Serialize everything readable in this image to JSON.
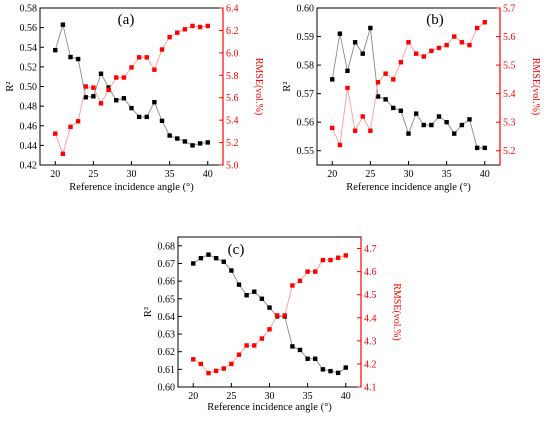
{
  "chart_data": [
    {
      "panel_label": "(a)",
      "type": "scatter",
      "xlabel": "Reference incidence angle (°)",
      "ylabel_left": "R²",
      "ylabel_right": "RMSE(vol.%)",
      "x": [
        20,
        21,
        22,
        23,
        24,
        25,
        26,
        27,
        28,
        29,
        30,
        31,
        32,
        33,
        34,
        35,
        36,
        37,
        38,
        39,
        40
      ],
      "xlim": [
        18,
        42
      ],
      "xticks": [
        "20",
        "25",
        "30",
        "35",
        "40"
      ],
      "ylim_left": [
        0.42,
        0.58
      ],
      "yticks_left": [
        "0.42",
        "0.44",
        "0.46",
        "0.48",
        "0.50",
        "0.52",
        "0.54",
        "0.56",
        "0.58"
      ],
      "ylim_right": [
        5.0,
        6.4
      ],
      "yticks_right": [
        "5.0",
        "5.2",
        "5.4",
        "5.6",
        "5.8",
        "6.0",
        "6.2",
        "6.4"
      ],
      "series": [
        {
          "axis": "left",
          "color": "#000000",
          "values": [
            0.537,
            0.563,
            0.53,
            0.528,
            0.489,
            0.49,
            0.513,
            0.499,
            0.486,
            0.488,
            0.478,
            0.469,
            0.469,
            0.484,
            0.465,
            0.45,
            0.447,
            0.444,
            0.44,
            0.442,
            0.443
          ]
        },
        {
          "axis": "right",
          "color": "#ff0000",
          "values": [
            5.28,
            5.1,
            5.34,
            5.39,
            5.7,
            5.69,
            5.55,
            5.67,
            5.78,
            5.78,
            5.87,
            5.96,
            5.96,
            5.85,
            6.03,
            6.14,
            6.18,
            6.21,
            6.24,
            6.23,
            6.24
          ]
        }
      ]
    },
    {
      "panel_label": "(b)",
      "type": "scatter",
      "xlabel": "Reference incidence angle (°)",
      "ylabel_left": "R²",
      "ylabel_right": "RMSE(vol.%)",
      "x": [
        20,
        21,
        22,
        23,
        24,
        25,
        26,
        27,
        28,
        29,
        30,
        31,
        32,
        33,
        34,
        35,
        36,
        37,
        38,
        39,
        40
      ],
      "xlim": [
        18,
        42
      ],
      "xticks": [
        "20",
        "25",
        "30",
        "35",
        "40"
      ],
      "ylim_left": [
        0.545,
        0.6
      ],
      "yticks_left": [
        "0.55",
        "0.56",
        "0.57",
        "0.58",
        "0.59",
        "0.60"
      ],
      "ylim_right": [
        5.15,
        5.7
      ],
      "yticks_right": [
        "5.2",
        "5.3",
        "5.4",
        "5.5",
        "5.6",
        "5.7"
      ],
      "series": [
        {
          "axis": "left",
          "color": "#000000",
          "values": [
            0.575,
            0.591,
            0.578,
            0.588,
            0.584,
            0.593,
            0.569,
            0.568,
            0.565,
            0.564,
            0.556,
            0.563,
            0.559,
            0.559,
            0.562,
            0.56,
            0.556,
            0.559,
            0.561,
            0.551,
            0.551
          ]
        },
        {
          "axis": "right",
          "color": "#ff0000",
          "values": [
            5.28,
            5.22,
            5.42,
            5.27,
            5.32,
            5.27,
            5.44,
            5.47,
            5.45,
            5.51,
            5.58,
            5.54,
            5.53,
            5.55,
            5.56,
            5.57,
            5.6,
            5.58,
            5.57,
            5.63,
            5.65
          ]
        }
      ]
    },
    {
      "panel_label": "(c)",
      "type": "scatter",
      "xlabel": "Reference incidence angle (°)",
      "ylabel_left": "R²",
      "ylabel_right": "RMSE(vol.%)",
      "x": [
        20,
        21,
        22,
        23,
        24,
        25,
        26,
        27,
        28,
        29,
        30,
        31,
        32,
        33,
        34,
        35,
        36,
        37,
        38,
        39,
        40
      ],
      "xlim": [
        18,
        42
      ],
      "xticks": [
        "20",
        "25",
        "30",
        "35",
        "40"
      ],
      "ylim_left": [
        0.6,
        0.685
      ],
      "yticks_left": [
        "0.60",
        "0.61",
        "0.62",
        "0.63",
        "0.64",
        "0.65",
        "0.66",
        "0.67",
        "0.68"
      ],
      "ylim_right": [
        4.1,
        4.75
      ],
      "yticks_right": [
        "4.1",
        "4.2",
        "4.3",
        "4.4",
        "4.5",
        "4.6",
        "4.7"
      ],
      "series": [
        {
          "axis": "left",
          "color": "#000000",
          "values": [
            0.67,
            0.673,
            0.675,
            0.673,
            0.671,
            0.666,
            0.658,
            0.652,
            0.654,
            0.65,
            0.645,
            0.64,
            0.64,
            0.623,
            0.621,
            0.616,
            0.616,
            0.61,
            0.609,
            0.608,
            0.611
          ]
        },
        {
          "axis": "right",
          "color": "#ff0000",
          "values": [
            4.22,
            4.2,
            4.16,
            4.17,
            4.18,
            4.2,
            4.24,
            4.28,
            4.28,
            4.31,
            4.35,
            4.41,
            4.41,
            4.54,
            4.56,
            4.6,
            4.6,
            4.65,
            4.65,
            4.66,
            4.67
          ]
        }
      ]
    }
  ]
}
